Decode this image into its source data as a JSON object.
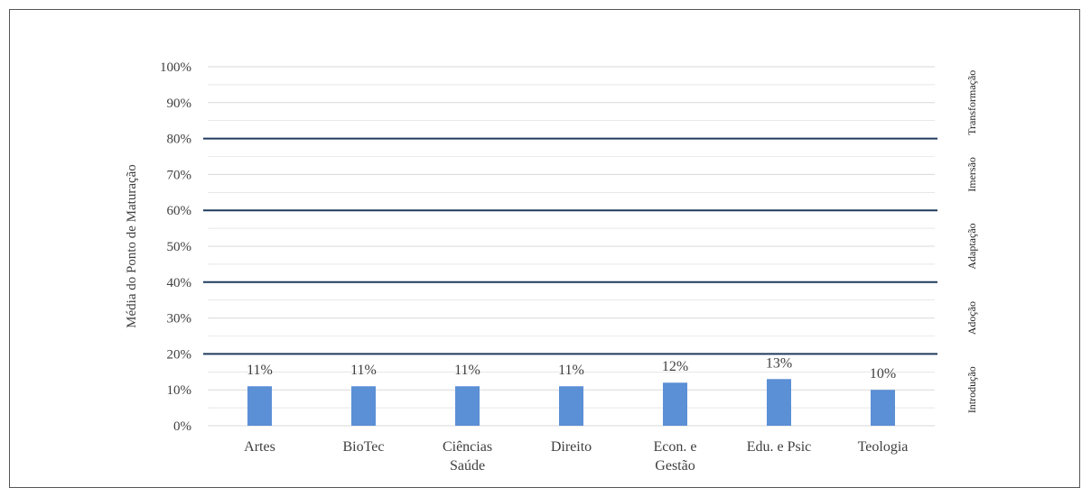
{
  "chart_data": {
    "type": "bar",
    "title": "",
    "xlabel": "",
    "ylabel": "Média do Ponto de Maturação",
    "categories": [
      [
        "Artes"
      ],
      [
        "BioTec"
      ],
      [
        "Ciências",
        "Saúde"
      ],
      [
        "Direito"
      ],
      [
        "Econ. e",
        "Gestão"
      ],
      [
        "Edu. e Psic"
      ],
      [
        "Teologia"
      ]
    ],
    "values": [
      11,
      11,
      11,
      11,
      12,
      13,
      10
    ],
    "data_labels": [
      "11%",
      "11%",
      "11%",
      "11%",
      "12%",
      "13%",
      "10%"
    ],
    "ylim": [
      0,
      100
    ],
    "yticks": [
      "0%",
      "10%",
      "20%",
      "30%",
      "40%",
      "50%",
      "60%",
      "70%",
      "80%",
      "90%",
      "100%"
    ],
    "grid": true,
    "thresholds": [
      20,
      40,
      60,
      80
    ],
    "band_labels": [
      {
        "label": "Introdução",
        "from": 0,
        "to": 20
      },
      {
        "label": "Adoção",
        "from": 20,
        "to": 40
      },
      {
        "label": "Adaptação",
        "from": 40,
        "to": 60
      },
      {
        "label": "Imersão",
        "from": 60,
        "to": 80
      },
      {
        "label": "Transformação",
        "from": 80,
        "to": 100
      }
    ],
    "colors": {
      "bar": "#5b8fd6",
      "threshold": "#1f3b5c",
      "grid": "#d9d9d9"
    }
  }
}
